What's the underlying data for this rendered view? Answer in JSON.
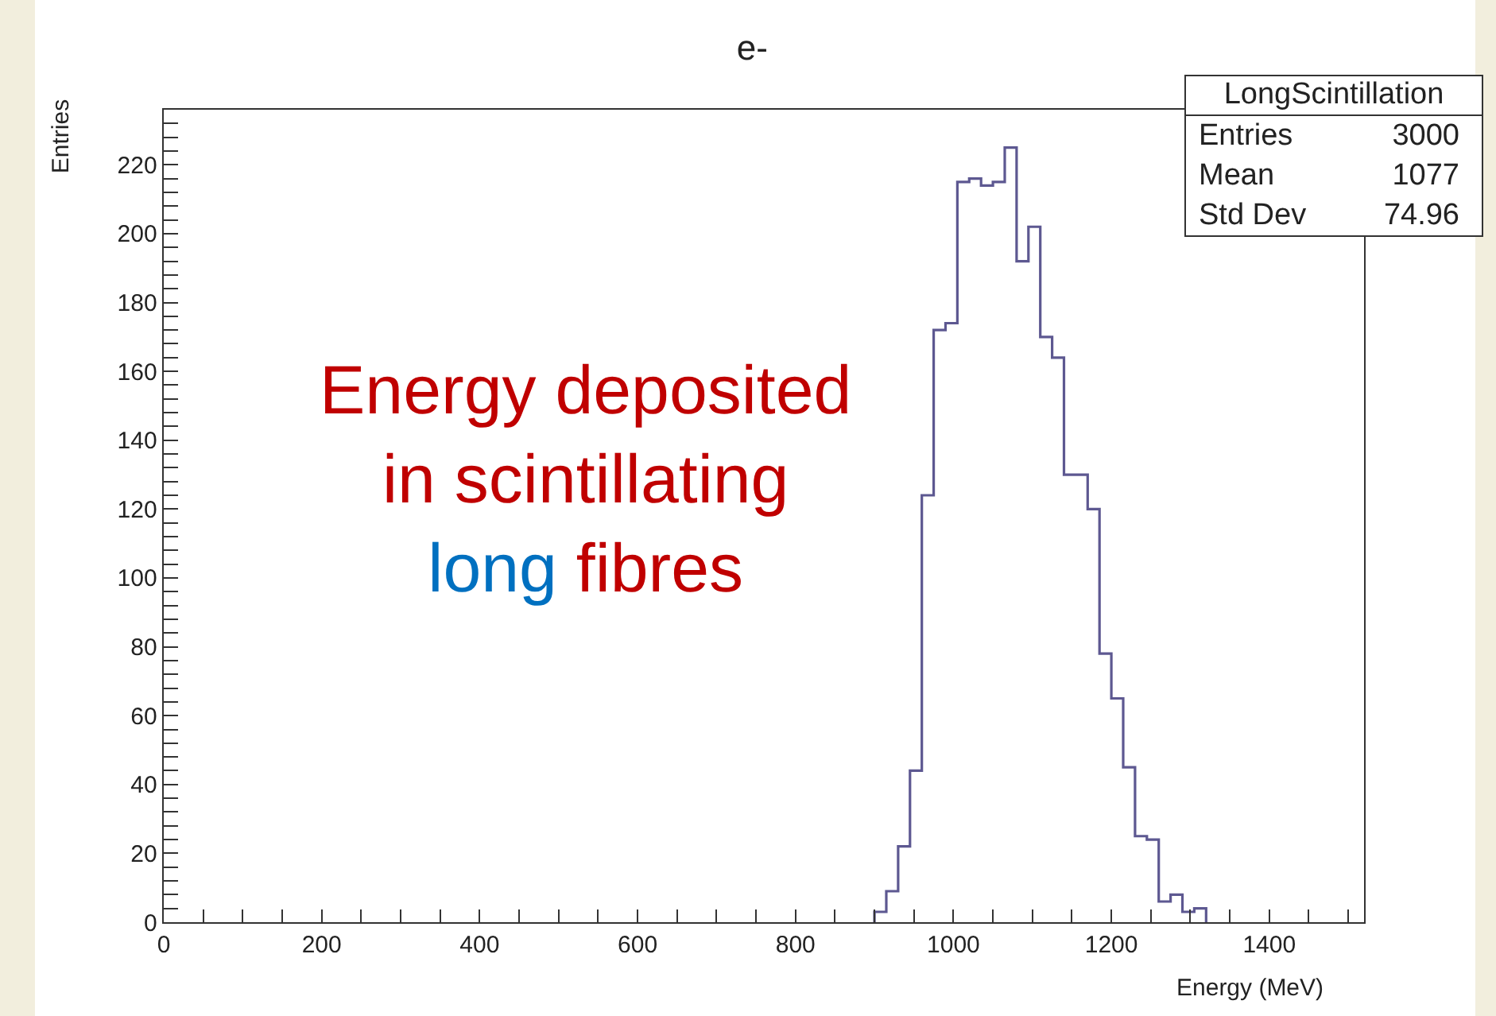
{
  "chart_data": {
    "type": "histogram",
    "title": "e-",
    "xlabel": "Energy (MeV)",
    "ylabel": "Entries",
    "bins": [
      900,
      915,
      930,
      945,
      960,
      975,
      990,
      1005,
      1020,
      1035,
      1050,
      1065,
      1080,
      1095,
      1110,
      1125,
      1140,
      1155,
      1170,
      1185,
      1200,
      1215,
      1230,
      1245,
      1260,
      1275,
      1290,
      1305,
      1320
    ],
    "values": [
      3,
      9,
      22,
      44,
      124,
      172,
      174,
      215,
      216,
      214,
      215,
      225,
      192,
      202,
      170,
      164,
      130,
      130,
      120,
      78,
      65,
      45,
      25,
      24,
      6,
      8,
      3,
      4
    ],
    "color": "#5d5891",
    "xlim": [
      0,
      1520
    ],
    "ylim": [
      0,
      236
    ],
    "xticks": [
      0,
      {
        "value": 50,
        "label": null
      },
      {
        "value": 100,
        "label": null
      },
      {
        "value": 150,
        "label": null
      },
      200,
      {
        "value": 250,
        "label": null
      },
      {
        "value": 300,
        "label": null
      },
      {
        "value": 350,
        "label": null
      },
      400,
      {
        "value": 450,
        "label": null
      },
      {
        "value": 500,
        "label": null
      },
      {
        "value": 550,
        "label": null
      },
      600,
      {
        "value": 650,
        "label": null
      },
      {
        "value": 700,
        "label": null
      },
      {
        "value": 750,
        "label": null
      },
      800,
      {
        "value": 850,
        "label": null
      },
      {
        "value": 900,
        "label": null
      },
      {
        "value": 950,
        "label": null
      },
      1000,
      {
        "value": 1050,
        "label": null
      },
      {
        "value": 1100,
        "label": null
      },
      {
        "value": 1150,
        "label": null
      },
      1200,
      {
        "value": 1250,
        "label": null
      },
      {
        "value": 1300,
        "label": null
      },
      {
        "value": 1350,
        "label": null
      },
      1400,
      {
        "value": 1450,
        "label": null
      },
      {
        "value": 1500,
        "label": null
      }
    ],
    "yticks": [
      0,
      {
        "value": 4,
        "label": null
      },
      {
        "value": 8,
        "label": null
      },
      {
        "value": 12,
        "label": null
      },
      {
        "value": 16,
        "label": null
      },
      20,
      {
        "value": 24,
        "label": null
      },
      {
        "value": 28,
        "label": null
      },
      {
        "value": 32,
        "label": null
      },
      {
        "value": 36,
        "label": null
      },
      40,
      {
        "value": 44,
        "label": null
      },
      {
        "value": 48,
        "label": null
      },
      {
        "value": 52,
        "label": null
      },
      {
        "value": 56,
        "label": null
      },
      60,
      {
        "value": 64,
        "label": null
      },
      {
        "value": 68,
        "label": null
      },
      {
        "value": 72,
        "label": null
      },
      {
        "value": 76,
        "label": null
      },
      80,
      {
        "value": 84,
        "label": null
      },
      {
        "value": 88,
        "label": null
      },
      {
        "value": 92,
        "label": null
      },
      {
        "value": 96,
        "label": null
      },
      100,
      {
        "value": 104,
        "label": null
      },
      {
        "value": 108,
        "label": null
      },
      {
        "value": 112,
        "label": null
      },
      {
        "value": 116,
        "label": null
      },
      120,
      {
        "value": 124,
        "label": null
      },
      {
        "value": 128,
        "label": null
      },
      {
        "value": 132,
        "label": null
      },
      {
        "value": 136,
        "label": null
      },
      140,
      {
        "value": 144,
        "label": null
      },
      {
        "value": 148,
        "label": null
      },
      {
        "value": 152,
        "label": null
      },
      {
        "value": 156,
        "label": null
      },
      160,
      {
        "value": 164,
        "label": null
      },
      {
        "value": 168,
        "label": null
      },
      {
        "value": 172,
        "label": null
      },
      {
        "value": 176,
        "label": null
      },
      180,
      {
        "value": 184,
        "label": null
      },
      {
        "value": 188,
        "label": null
      },
      {
        "value": 192,
        "label": null
      },
      {
        "value": 196,
        "label": null
      },
      200,
      {
        "value": 204,
        "label": null
      },
      {
        "value": 208,
        "label": null
      },
      {
        "value": 212,
        "label": null
      },
      {
        "value": 216,
        "label": null
      },
      220,
      {
        "value": 224,
        "label": null
      },
      {
        "value": 228,
        "label": null
      },
      {
        "value": 232,
        "label": null
      }
    ],
    "annotations": [
      "Energy deposited in scintillating long fibres",
      "LongScintillation",
      "Entries",
      "3000",
      "Mean",
      "1077",
      "Std Dev",
      "74.96"
    ],
    "grid": false
  }
}
